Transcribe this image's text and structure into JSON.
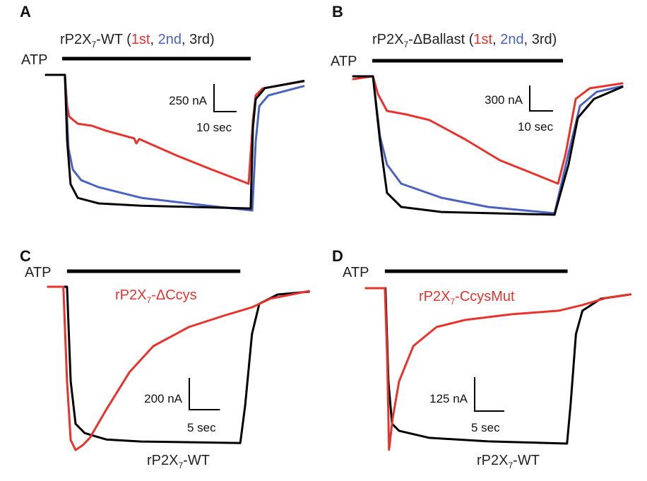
{
  "colors": {
    "first": "#e8332d",
    "second": "#4a62c0",
    "third": "#000000"
  },
  "chart_data": [
    {
      "panel": "A",
      "type": "line",
      "xunit": "sec",
      "yunit": "nA",
      "title": {
        "prefix": "rP2X",
        "sub": "7",
        "suffix": "-WT (",
        "first": "1st",
        "sep1": ", ",
        "second": "2nd",
        "rest": ", 3rd)"
      },
      "atp": {
        "label": "ATP",
        "start": 7.2,
        "end": 90.6
      },
      "scalebar": {
        "y_label": "250 nA",
        "y_value": 250,
        "x_label": "10 sec",
        "x_value": 10
      },
      "series": [
        {
          "key": "first",
          "x": [
            0,
            8.4,
            9.4,
            10.3,
            14.1,
            20.3,
            26.6,
            39.1,
            40,
            41.3,
            57.8,
            73.4,
            89.7,
            91.6,
            92.8,
            95.9,
            114
          ],
          "y": [
            0,
            0,
            -282,
            -378,
            -442,
            -461,
            -506,
            -576,
            -621,
            -582,
            -730,
            -858,
            -986,
            -410,
            -186,
            -122,
            -58
          ]
        },
        {
          "key": "second",
          "x": [
            0,
            8.4,
            10,
            11.9,
            15.6,
            23.4,
            42.2,
            73.4,
            91.3,
            92.8,
            94.4,
            98.4,
            114
          ],
          "y": [
            0,
            0,
            -666,
            -858,
            -954,
            -1018,
            -1114,
            -1190,
            -1229,
            -602,
            -282,
            -186,
            -102
          ]
        },
        {
          "key": "third",
          "x": [
            0,
            8.4,
            9.4,
            10.9,
            14.1,
            23.4,
            42.2,
            90.6,
            91.6,
            92.8,
            96.9,
            114
          ],
          "y": [
            0,
            0,
            -600,
            -990,
            -1115,
            -1165,
            -1185,
            -1210,
            -475,
            -220,
            -120,
            -55
          ]
        }
      ]
    },
    {
      "panel": "B",
      "type": "line",
      "xunit": "sec",
      "yunit": "nA",
      "title": {
        "prefix": "rP2X",
        "sub": "7",
        "suffix": "-ΔBallast (",
        "first": "1st",
        "sep1": ", ",
        "second": "2nd",
        "rest": ", 3rd)"
      },
      "atp": {
        "label": "ATP",
        "start": 8.2,
        "end": 90
      },
      "scalebar": {
        "y_label": "300 nA",
        "y_value": 300,
        "x_label": "10 sec",
        "x_value": 10
      },
      "series": [
        {
          "key": "first",
          "x": [
            0,
            8.5,
            10.6,
            14.5,
            22.7,
            32.7,
            47.9,
            63,
            78.2,
            87.9,
            91.2,
            95.5,
            101.5,
            115.5
          ],
          "y": [
            -33,
            0,
            -208,
            -408,
            -450,
            -516,
            -741,
            -991,
            -1158,
            -1266,
            -908,
            -267,
            -142,
            -83
          ]
        },
        {
          "key": "second",
          "x": [
            0,
            8.5,
            11.5,
            14.5,
            20.6,
            37.9,
            57.9,
            86.4,
            92.4,
            97.3,
            104.5,
            115.5
          ],
          "y": [
            0,
            0,
            -708,
            -1041,
            -1266,
            -1433,
            -1541,
            -1616,
            -908,
            -350,
            -183,
            -117
          ]
        },
        {
          "key": "third",
          "x": [
            0,
            8.5,
            11.5,
            14.5,
            20.6,
            37.9,
            86.4,
            92.4,
            96.4,
            103.3,
            115.5
          ],
          "y": [
            0,
            0,
            -767,
            -1375,
            -1541,
            -1600,
            -1633,
            -1041,
            -491,
            -267,
            -125
          ]
        }
      ]
    },
    {
      "panel": "C",
      "type": "line",
      "xunit": "sec",
      "yunit": "nA",
      "atp": {
        "label": "ATP",
        "start": 3.1,
        "end": 31.4
      },
      "scalebar": {
        "y_label": "200 nA",
        "y_value": 200,
        "x_label": "5 sec",
        "x_value": 5
      },
      "labels": {
        "mutant": {
          "prefix": "rP2X",
          "sub": "7",
          "suffix": "-ΔCcys"
        },
        "wt": {
          "prefix": "rP2X",
          "sub": "7",
          "suffix": "-WT"
        }
      },
      "series": [
        {
          "key": "third",
          "x": [
            0,
            3.1,
            3.7,
            4.5,
            6,
            9.5,
            15.2,
            31.4,
            32.2,
            33.3,
            34.5,
            37.5,
            42.6
          ],
          "y": [
            0,
            0,
            -595,
            -862,
            -920,
            -960,
            -973,
            -982,
            -742,
            -298,
            -107,
            -49,
            -31
          ]
        },
        {
          "key": "first",
          "x": [
            0,
            2.5,
            3.1,
            3.7,
            4.5,
            5.7,
            6.8,
            9.5,
            13.3,
            17.2,
            23,
            28.7,
            33.3,
            36.3,
            42.6
          ],
          "y": [
            0,
            0,
            -595,
            -964,
            -1026,
            -995,
            -951,
            -773,
            -537,
            -373,
            -253,
            -182,
            -129,
            -75,
            -27
          ]
        }
      ]
    },
    {
      "panel": "D",
      "type": "line",
      "xunit": "sec",
      "yunit": "nA",
      "atp": {
        "label": "ATP",
        "start": 3.2,
        "end": 34
      },
      "scalebar": {
        "y_label": "125 nA",
        "y_value": 125,
        "x_label": "5 sec",
        "x_value": 5
      },
      "labels": {
        "mutant": {
          "prefix": "rP2X",
          "sub": "7",
          "suffix": "-CcysMut"
        },
        "wt": {
          "prefix": "rP2X",
          "sub": "7",
          "suffix": "-WT"
        }
      },
      "series": [
        {
          "key": "third",
          "x": [
            0,
            3.3,
            3.8,
            4.4,
            5.6,
            10.7,
            20.6,
            33.9,
            34.5,
            35.4,
            36.5,
            39.6,
            44.6
          ],
          "y": [
            0,
            0,
            -343,
            -499,
            -525,
            -551,
            -564,
            -572,
            -429,
            -169,
            -83,
            -39,
            -23
          ]
        },
        {
          "key": "first",
          "x": [
            0,
            3.2,
            3.6,
            3.9,
            4.5,
            5.6,
            8,
            11.9,
            16.7,
            24.6,
            32.5,
            36.5,
            40.5,
            44.6
          ],
          "y": [
            0,
            0,
            -257,
            -595,
            -481,
            -343,
            -213,
            -143,
            -117,
            -96,
            -83,
            -62,
            -36,
            -23
          ]
        }
      ]
    }
  ]
}
